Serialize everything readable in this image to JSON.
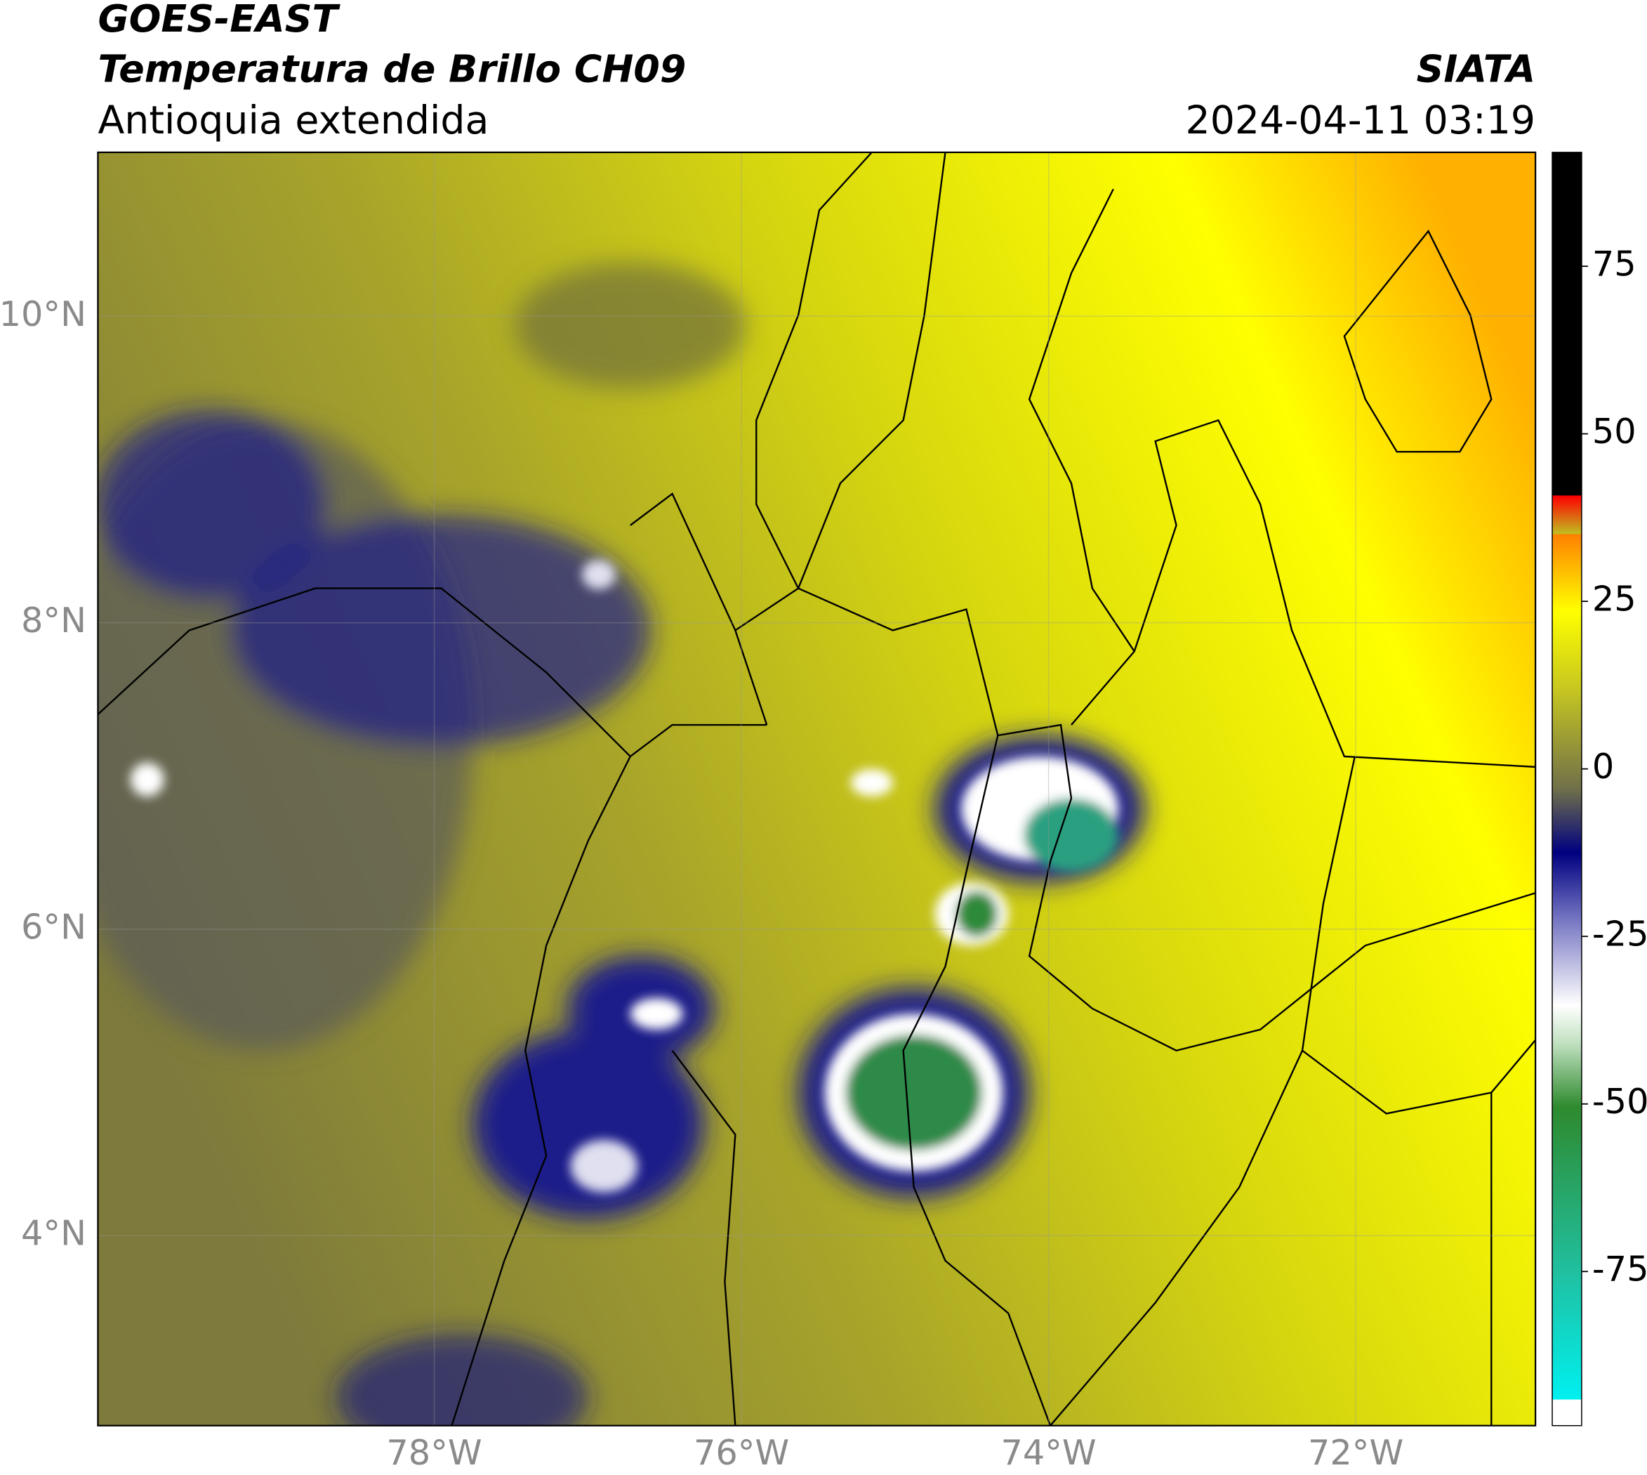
{
  "header": {
    "title": "GOES-EAST",
    "subtitle": "Temperatura de Brillo CH09",
    "region": "Antioquia extendida",
    "source": "SIATA",
    "datetime": "2024-04-11 03:19"
  },
  "map": {
    "xlim": [
      -80.19,
      -70.83
    ],
    "ylim": [
      2.76,
      11.07
    ],
    "xticks": [
      {
        "value": -78,
        "label": "78°W"
      },
      {
        "value": -76,
        "label": "76°W"
      },
      {
        "value": -74,
        "label": "74°W"
      },
      {
        "value": -72,
        "label": "72°W"
      }
    ],
    "yticks": [
      {
        "value": 10,
        "label": "10°N"
      },
      {
        "value": 8,
        "label": "8°N"
      },
      {
        "value": 6,
        "label": "6°N"
      },
      {
        "value": 4,
        "label": "4°N"
      }
    ]
  },
  "colorbar": {
    "lim": [
      -98,
      92
    ],
    "ticks": [
      75,
      50,
      25,
      0,
      -25,
      -50,
      -75
    ]
  }
}
